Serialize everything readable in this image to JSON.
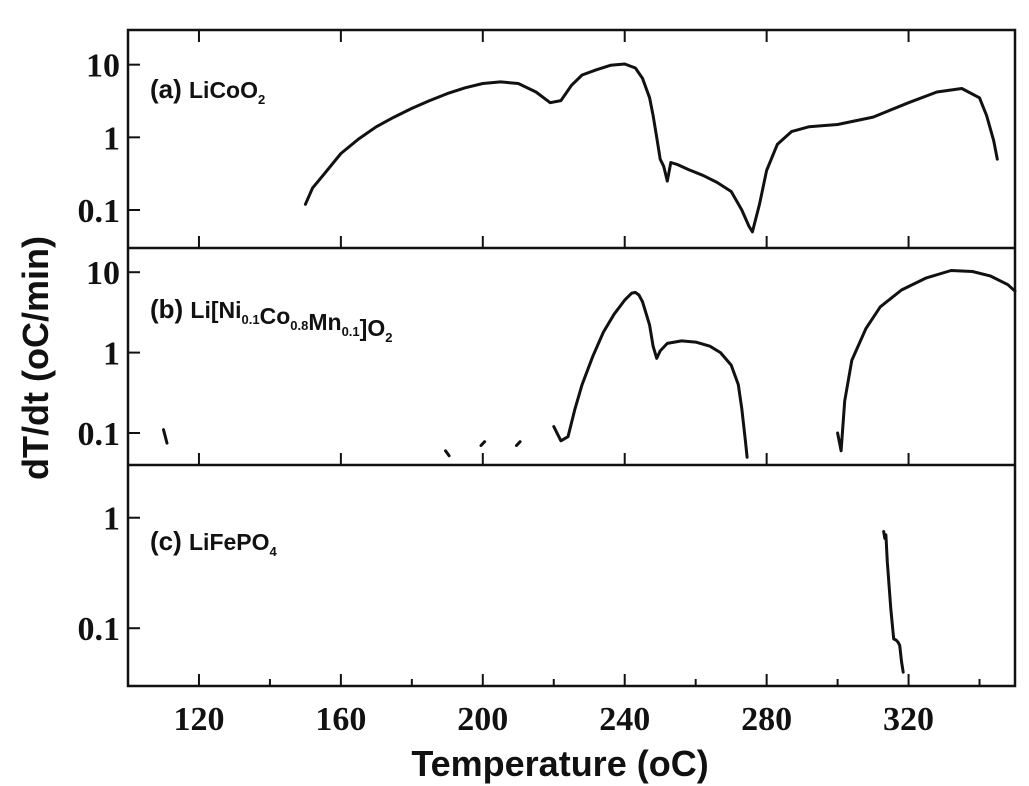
{
  "chart_data": {
    "type": "line",
    "xlabel": "Temperature (oC)",
    "ylabel": "dT/dt (oC/min)",
    "xlim": [
      100,
      350
    ],
    "x_ticks": [
      120,
      160,
      200,
      240,
      280,
      320
    ],
    "x_tick_labels": [
      "120",
      "160",
      "200",
      "240",
      "280",
      "320"
    ],
    "yscale": "log",
    "shared_x": true,
    "grid": false,
    "panels": [
      {
        "label": {
          "prefix": "(a) ",
          "parts": [
            {
              "t": "LiCoO"
            },
            {
              "t": "2",
              "sub": true
            }
          ]
        },
        "ylim": [
          0.03,
          30
        ],
        "y_ticks": [
          0.1,
          1,
          10
        ],
        "y_tick_labels": [
          "0.1",
          "1",
          "10"
        ],
        "series": [
          {
            "x": [
              150,
              152,
              155,
              160,
              165,
              170,
              175,
              180,
              185,
              190,
              195,
              200,
              205,
              210,
              215,
              219,
              222,
              225,
              228,
              232,
              236,
              240,
              243,
              245,
              247,
              248,
              249,
              250,
              251,
              252,
              253,
              255,
              258,
              262,
              266,
              270,
              273,
              275,
              276,
              278,
              280,
              283,
              287,
              292,
              300,
              310,
              320,
              328,
              335,
              340,
              342,
              344,
              345
            ],
            "y": [
              0.12,
              0.2,
              0.3,
              0.6,
              0.95,
              1.4,
              1.9,
              2.5,
              3.2,
              4.0,
              4.8,
              5.5,
              5.8,
              5.5,
              4.2,
              3.0,
              3.2,
              5.2,
              7.2,
              8.5,
              9.8,
              10.2,
              9.0,
              6.5,
              3.5,
              2.0,
              1.0,
              0.5,
              0.4,
              0.25,
              0.45,
              0.42,
              0.36,
              0.3,
              0.24,
              0.18,
              0.1,
              0.06,
              0.05,
              0.12,
              0.35,
              0.8,
              1.2,
              1.4,
              1.5,
              1.9,
              3.0,
              4.2,
              4.7,
              3.5,
              2.0,
              0.9,
              0.5
            ]
          }
        ]
      },
      {
        "label": {
          "prefix": "(b) ",
          "parts": [
            {
              "t": "Li[Ni"
            },
            {
              "t": "0.1",
              "sub": true
            },
            {
              "t": "Co"
            },
            {
              "t": "0.8",
              "sub": true
            },
            {
              "t": "Mn"
            },
            {
              "t": "0.1",
              "sub": true
            },
            {
              "t": "]O"
            },
            {
              "t": "2",
              "sub": true
            }
          ]
        },
        "ylim": [
          0.04,
          20
        ],
        "y_ticks": [
          0.1,
          1,
          10
        ],
        "y_tick_labels": [
          "0.1",
          "1",
          "10"
        ],
        "series": [
          {
            "x": [
              110,
              111
            ],
            "y": [
              0.11,
              0.075
            ]
          },
          {
            "x": [
              189.5,
              190.5
            ],
            "y": [
              0.06,
              0.052
            ]
          },
          {
            "x": [
              199.5,
              200.5
            ],
            "y": [
              0.07,
              0.078
            ]
          },
          {
            "x": [
              209.5,
              210.5
            ],
            "y": [
              0.07,
              0.078
            ]
          },
          {
            "x": [
              220,
              222,
              224,
              226,
              228,
              231,
              234,
              237,
              240,
              242,
              243,
              244,
              245,
              247,
              248,
              249,
              250,
              252,
              256,
              260,
              264,
              267,
              270,
              272,
              273,
              274,
              274.5
            ],
            "y": [
              0.12,
              0.08,
              0.09,
              0.2,
              0.4,
              0.9,
              1.8,
              3.0,
              4.5,
              5.5,
              5.6,
              5.2,
              4.3,
              2.2,
              1.2,
              0.85,
              1.05,
              1.3,
              1.4,
              1.35,
              1.2,
              1.0,
              0.7,
              0.4,
              0.2,
              0.08,
              0.05
            ]
          },
          {
            "x": [
              300,
              301,
              302,
              304,
              308,
              312,
              318,
              325,
              332,
              338,
              343,
              348,
              350
            ],
            "y": [
              0.1,
              0.06,
              0.25,
              0.8,
              2.0,
              3.7,
              6.0,
              8.5,
              10.5,
              10.2,
              9.0,
              7.0,
              5.8
            ]
          }
        ]
      },
      {
        "label": {
          "prefix": "(c) ",
          "parts": [
            {
              "t": "LiFePO"
            },
            {
              "t": "4",
              "sub": true
            }
          ]
        },
        "ylim": [
          0.03,
          3
        ],
        "y_ticks": [
          0.1,
          1
        ],
        "y_tick_labels": [
          "0.1",
          "1"
        ],
        "series": [
          {
            "x": [
              313,
              313.3,
              313.6,
              314,
              315,
              315.8,
              316.5,
              317,
              317.5,
              318,
              318.5
            ],
            "y": [
              0.75,
              0.65,
              0.7,
              0.4,
              0.15,
              0.08,
              0.078,
              0.075,
              0.07,
              0.05,
              0.04
            ]
          }
        ]
      }
    ]
  }
}
